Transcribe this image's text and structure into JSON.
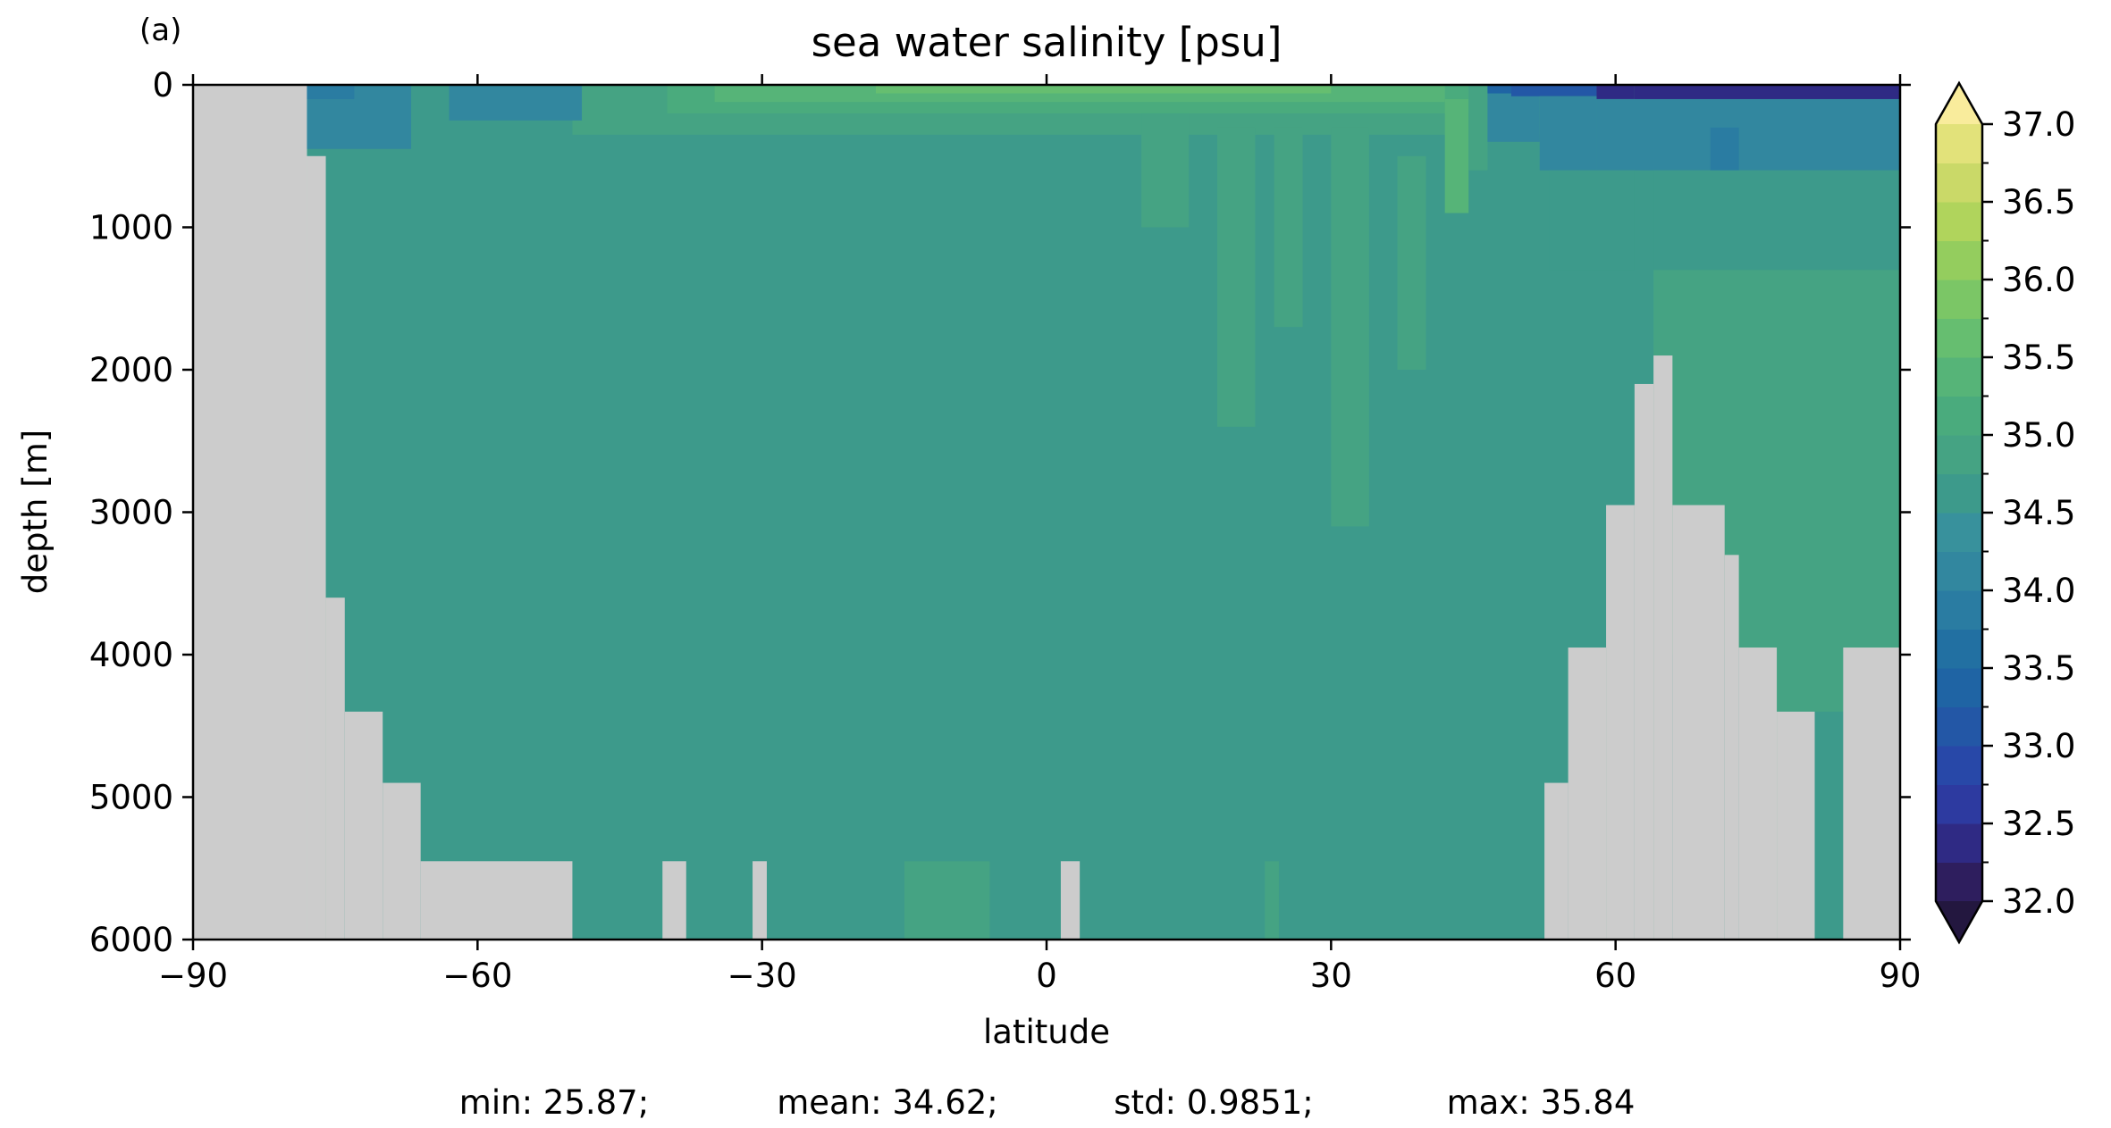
{
  "panel_label": "(a)",
  "chart_data": {
    "type": "heatmap",
    "title": "sea water salinity [psu]",
    "xlabel": "latitude",
    "ylabel": "depth [m]",
    "xlim": [
      -90,
      90
    ],
    "ylim": [
      6000,
      0
    ],
    "x_ticks": [
      "−90",
      "−60",
      "−30",
      "0",
      "30",
      "60",
      "90"
    ],
    "x_tick_values": [
      -90,
      -60,
      -30,
      0,
      30,
      60,
      90
    ],
    "y_ticks": [
      "0",
      "1000",
      "2000",
      "3000",
      "4000",
      "5000",
      "6000"
    ],
    "y_tick_values": [
      0,
      1000,
      2000,
      3000,
      4000,
      5000,
      6000
    ],
    "colorbar": {
      "ticks": [
        "32.0",
        "32.5",
        "33.0",
        "33.5",
        "34.0",
        "34.5",
        "35.0",
        "35.5",
        "36.0",
        "36.5",
        "37.0"
      ],
      "tick_values": [
        32.0,
        32.5,
        33.0,
        33.5,
        34.0,
        34.5,
        35.0,
        35.5,
        36.0,
        36.5,
        37.0
      ],
      "levels": [
        32.0,
        32.25,
        32.5,
        32.75,
        33.0,
        33.25,
        33.5,
        33.75,
        34.0,
        34.25,
        34.5,
        34.75,
        35.0,
        35.25,
        35.5,
        35.75,
        36.0,
        36.25,
        36.5,
        36.75,
        37.0
      ],
      "colors": [
        "#2e1e5e",
        "#2f2a84",
        "#2d3aa0",
        "#2848a8",
        "#2357a6",
        "#1f64a4",
        "#2270a2",
        "#2a7ca2",
        "#32879f",
        "#38919c",
        "#3d9a8b",
        "#45a383",
        "#4aab7d",
        "#56b478",
        "#66be70",
        "#7bc666",
        "#94cd5e",
        "#b0d45c",
        "#cad968",
        "#e2e27a",
        "#f1e797"
      ],
      "under_color": "#23173f",
      "over_color": "#f9ec9c"
    },
    "land_color": "#cccccc",
    "land_mask": [
      {
        "lat": [
          -90,
          -78
        ],
        "depth": [
          0,
          6000
        ]
      },
      {
        "lat": [
          -78,
          -76
        ],
        "depth": [
          500,
          6000
        ]
      },
      {
        "lat": [
          -76,
          -74
        ],
        "depth": [
          3600,
          6000
        ]
      },
      {
        "lat": [
          -74,
          -70
        ],
        "depth": [
          4400,
          6000
        ]
      },
      {
        "lat": [
          -70,
          -66
        ],
        "depth": [
          4900,
          6000
        ]
      },
      {
        "lat": [
          -66,
          -50
        ],
        "depth": [
          5450,
          6000
        ]
      },
      {
        "lat": [
          -40.5,
          -38
        ],
        "depth": [
          5450,
          6000
        ]
      },
      {
        "lat": [
          -31,
          -29.5
        ],
        "depth": [
          5450,
          6000
        ]
      },
      {
        "lat": [
          1.5,
          3.5
        ],
        "depth": [
          5450,
          6000
        ]
      },
      {
        "lat": [
          52.5,
          55
        ],
        "depth": [
          4900,
          6000
        ]
      },
      {
        "lat": [
          55,
          59
        ],
        "depth": [
          3950,
          6000
        ]
      },
      {
        "lat": [
          59,
          62
        ],
        "depth": [
          2950,
          6000
        ]
      },
      {
        "lat": [
          62,
          64
        ],
        "depth": [
          2100,
          6000
        ]
      },
      {
        "lat": [
          64,
          66
        ],
        "depth": [
          1900,
          6000
        ]
      },
      {
        "lat": [
          66,
          71.5
        ],
        "depth": [
          2950,
          6000
        ]
      },
      {
        "lat": [
          71.5,
          73
        ],
        "depth": [
          3300,
          6000
        ]
      },
      {
        "lat": [
          73,
          77
        ],
        "depth": [
          3950,
          6000
        ]
      },
      {
        "lat": [
          77,
          81
        ],
        "depth": [
          4400,
          6000
        ]
      },
      {
        "lat": [
          84,
          90
        ],
        "depth": [
          3950,
          6000
        ]
      }
    ],
    "regions": [
      {
        "lat": [
          -78,
          90
        ],
        "depth": [
          0,
          6000
        ],
        "value": 34.6
      },
      {
        "lat": [
          -15,
          -6
        ],
        "depth": [
          5450,
          6000
        ],
        "value": 34.8
      },
      {
        "lat": [
          23,
          24.5
        ],
        "depth": [
          5450,
          6000
        ],
        "value": 34.8
      },
      {
        "lat": [
          -50,
          52
        ],
        "depth": [
          0,
          350
        ],
        "value": 34.8
      },
      {
        "lat": [
          -40,
          45
        ],
        "depth": [
          0,
          200
        ],
        "value": 35.1
      },
      {
        "lat": [
          -35,
          42
        ],
        "depth": [
          0,
          120
        ],
        "value": 35.4
      },
      {
        "lat": [
          -18,
          30
        ],
        "depth": [
          0,
          60
        ],
        "value": 35.7
      },
      {
        "lat": [
          -78,
          -67
        ],
        "depth": [
          0,
          450
        ],
        "value": 34.2
      },
      {
        "lat": [
          -78,
          -73
        ],
        "depth": [
          0,
          100
        ],
        "value": 33.9
      },
      {
        "lat": [
          -63,
          -49
        ],
        "depth": [
          0,
          250
        ],
        "value": 34.2
      },
      {
        "lat": [
          10,
          15
        ],
        "depth": [
          200,
          1000
        ],
        "value": 34.8
      },
      {
        "lat": [
          18,
          22
        ],
        "depth": [
          300,
          2400
        ],
        "value": 34.8
      },
      {
        "lat": [
          24,
          27
        ],
        "depth": [
          300,
          1700
        ],
        "value": 34.8
      },
      {
        "lat": [
          30,
          34
        ],
        "depth": [
          300,
          3100
        ],
        "value": 34.8
      },
      {
        "lat": [
          37,
          40
        ],
        "depth": [
          500,
          2000
        ],
        "value": 34.8
      },
      {
        "lat": [
          42,
          44.5
        ],
        "depth": [
          100,
          900
        ],
        "value": 35.4
      },
      {
        "lat": [
          44.5,
          46.5
        ],
        "depth": [
          0,
          600
        ],
        "value": 34.8
      },
      {
        "lat": [
          46.5,
          52
        ],
        "depth": [
          0,
          400
        ],
        "value": 34.2
      },
      {
        "lat": [
          46.5,
          49
        ],
        "depth": [
          0,
          60
        ],
        "value": 33.4
      },
      {
        "lat": [
          49,
          58
        ],
        "depth": [
          0,
          80
        ],
        "value": 33.0
      },
      {
        "lat": [
          58,
          62
        ],
        "depth": [
          0,
          100
        ],
        "value": 32.3
      },
      {
        "lat": [
          62,
          90
        ],
        "depth": [
          0,
          120
        ],
        "value": 32.4
      },
      {
        "lat": [
          52,
          58
        ],
        "depth": [
          80,
          600
        ],
        "value": 34.2
      },
      {
        "lat": [
          58,
          90
        ],
        "depth": [
          100,
          600
        ],
        "value": 34.2
      },
      {
        "lat": [
          70,
          73
        ],
        "depth": [
          300,
          700
        ],
        "value": 33.9
      },
      {
        "lat": [
          53,
          62
        ],
        "depth": [
          600,
          1300
        ],
        "value": 34.6
      },
      {
        "lat": [
          64,
          90
        ],
        "depth": [
          600,
          1300
        ],
        "value": 34.6
      },
      {
        "lat": [
          64,
          90
        ],
        "depth": [
          1300,
          4000
        ],
        "value": 34.95
      },
      {
        "lat": [
          73,
          84
        ],
        "depth": [
          3950,
          4400
        ],
        "value": 34.95
      },
      {
        "lat": [
          81,
          84
        ],
        "depth": [
          4400,
          4400
        ],
        "value": 34.95
      }
    ],
    "stats": {
      "min_label": "min: 25.87;",
      "mean_label": "mean: 34.62;",
      "std_label": "std: 0.9851;",
      "max_label": "max: 35.84",
      "min": 25.87,
      "mean": 34.62,
      "std": 0.9851,
      "max": 35.84
    }
  }
}
